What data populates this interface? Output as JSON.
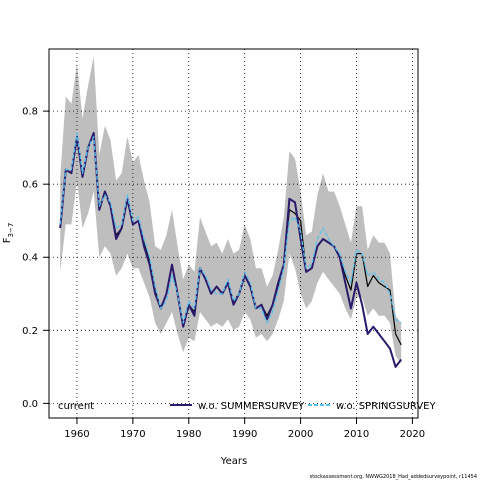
{
  "chart_data": {
    "type": "line",
    "title": "",
    "xlabel": "Years",
    "ylabel": "F",
    "ylabel_subscript": "3−7",
    "xlim": [
      1955,
      2021
    ],
    "ylim": [
      -0.04,
      0.97
    ],
    "xticks": [
      1960,
      1970,
      1980,
      1990,
      2000,
      2010,
      2020
    ],
    "yticks": [
      0.0,
      0.2,
      0.4,
      0.6,
      0.8
    ],
    "xtick_labels": [
      "1960",
      "1970",
      "1980",
      "1990",
      "2000",
      "2010",
      "2020"
    ],
    "ytick_labels": [
      "0.0",
      "0.2",
      "0.4",
      "0.6",
      "0.8"
    ],
    "grid": true,
    "grid_style": "dotted",
    "legend_position": "bottom",
    "band": {
      "x": [
        1957,
        1958,
        1959,
        1960,
        1961,
        1962,
        1963,
        1964,
        1965,
        1966,
        1967,
        1968,
        1969,
        1970,
        1971,
        1972,
        1973,
        1974,
        1975,
        1976,
        1977,
        1978,
        1979,
        1980,
        1981,
        1982,
        1983,
        1984,
        1985,
        1986,
        1987,
        1988,
        1989,
        1990,
        1991,
        1992,
        1993,
        1994,
        1995,
        1996,
        1997,
        1998,
        1999,
        2000,
        2001,
        2002,
        2003,
        2004,
        2005,
        2006,
        2007,
        2008,
        2009,
        2010,
        2011,
        2012,
        2013,
        2014,
        2015,
        2016,
        2017,
        2018
      ],
      "upper": [
        0.62,
        0.84,
        0.82,
        0.93,
        0.78,
        0.87,
        0.95,
        0.68,
        0.76,
        0.72,
        0.61,
        0.63,
        0.73,
        0.66,
        0.68,
        0.61,
        0.55,
        0.43,
        0.42,
        0.46,
        0.53,
        0.43,
        0.34,
        0.38,
        0.36,
        0.51,
        0.47,
        0.43,
        0.44,
        0.41,
        0.45,
        0.41,
        0.42,
        0.49,
        0.45,
        0.37,
        0.37,
        0.32,
        0.35,
        0.42,
        0.51,
        0.69,
        0.67,
        0.58,
        0.46,
        0.47,
        0.57,
        0.63,
        0.58,
        0.58,
        0.54,
        0.49,
        0.44,
        0.54,
        0.54,
        0.42,
        0.46,
        0.44,
        0.44,
        0.41,
        0.24,
        0.22
      ],
      "lower": [
        0.36,
        0.49,
        0.49,
        0.61,
        0.48,
        0.52,
        0.58,
        0.4,
        0.43,
        0.41,
        0.35,
        0.37,
        0.41,
        0.37,
        0.37,
        0.33,
        0.29,
        0.22,
        0.19,
        0.22,
        0.25,
        0.19,
        0.14,
        0.18,
        0.17,
        0.25,
        0.23,
        0.21,
        0.22,
        0.21,
        0.23,
        0.2,
        0.21,
        0.25,
        0.23,
        0.18,
        0.19,
        0.17,
        0.19,
        0.23,
        0.28,
        0.41,
        0.37,
        0.3,
        0.26,
        0.28,
        0.33,
        0.36,
        0.34,
        0.32,
        0.3,
        0.26,
        0.23,
        0.29,
        0.29,
        0.24,
        0.26,
        0.24,
        0.24,
        0.22,
        0.13,
        0.11
      ]
    },
    "series": [
      {
        "name": "current",
        "color": "#000000",
        "style": "solid",
        "x": [
          1957,
          1958,
          1959,
          1960,
          1961,
          1962,
          1963,
          1964,
          1965,
          1966,
          1967,
          1968,
          1969,
          1970,
          1971,
          1972,
          1973,
          1974,
          1975,
          1976,
          1977,
          1978,
          1979,
          1980,
          1981,
          1982,
          1983,
          1984,
          1985,
          1986,
          1987,
          1988,
          1989,
          1990,
          1991,
          1992,
          1993,
          1994,
          1995,
          1996,
          1997,
          1998,
          1999,
          2000,
          2001,
          2002,
          2003,
          2004,
          2005,
          2006,
          2007,
          2008,
          2009,
          2010,
          2011,
          2012,
          2013,
          2014,
          2015,
          2016,
          2017,
          2018
        ],
        "y": [
          0.48,
          0.64,
          0.63,
          0.73,
          0.62,
          0.7,
          0.74,
          0.53,
          0.58,
          0.54,
          0.46,
          0.48,
          0.56,
          0.49,
          0.5,
          0.44,
          0.39,
          0.31,
          0.26,
          0.3,
          0.38,
          0.3,
          0.21,
          0.27,
          0.25,
          0.37,
          0.34,
          0.3,
          0.32,
          0.3,
          0.33,
          0.28,
          0.3,
          0.35,
          0.32,
          0.26,
          0.27,
          0.24,
          0.27,
          0.32,
          0.38,
          0.53,
          0.52,
          0.5,
          0.36,
          0.37,
          0.43,
          0.45,
          0.44,
          0.43,
          0.4,
          0.35,
          0.31,
          0.41,
          0.41,
          0.32,
          0.35,
          0.33,
          0.32,
          0.31,
          0.19,
          0.16
        ]
      },
      {
        "name": "w.o. SUMMERSURVEY",
        "color": "#2b1a6b",
        "style": "solid",
        "x": [
          1957,
          1958,
          1959,
          1960,
          1961,
          1962,
          1963,
          1964,
          1965,
          1966,
          1967,
          1968,
          1969,
          1970,
          1971,
          1972,
          1973,
          1974,
          1975,
          1976,
          1977,
          1978,
          1979,
          1980,
          1981,
          1982,
          1983,
          1984,
          1985,
          1986,
          1987,
          1988,
          1989,
          1990,
          1991,
          1992,
          1993,
          1994,
          1995,
          1996,
          1997,
          1998,
          1999,
          2000,
          2001,
          2002,
          2003,
          2004,
          2005,
          2006,
          2007,
          2008,
          2009,
          2010,
          2011,
          2012,
          2013,
          2014,
          2015,
          2016,
          2017,
          2018
        ],
        "y": [
          0.48,
          0.64,
          0.63,
          0.73,
          0.62,
          0.7,
          0.74,
          0.53,
          0.58,
          0.54,
          0.45,
          0.48,
          0.56,
          0.49,
          0.5,
          0.43,
          0.38,
          0.3,
          0.26,
          0.3,
          0.38,
          0.3,
          0.21,
          0.27,
          0.24,
          0.37,
          0.34,
          0.3,
          0.32,
          0.3,
          0.33,
          0.27,
          0.3,
          0.35,
          0.32,
          0.26,
          0.27,
          0.23,
          0.27,
          0.33,
          0.38,
          0.56,
          0.55,
          0.45,
          0.36,
          0.37,
          0.43,
          0.45,
          0.44,
          0.43,
          0.4,
          0.33,
          0.26,
          0.33,
          0.27,
          0.19,
          0.21,
          0.19,
          0.17,
          0.15,
          0.1,
          0.12
        ]
      },
      {
        "name": "w.o. SPRINGSURVEY",
        "color": "#55c1ee",
        "style": "dashed",
        "x": [
          1957,
          1958,
          1959,
          1960,
          1961,
          1962,
          1963,
          1964,
          1965,
          1966,
          1967,
          1968,
          1969,
          1970,
          1971,
          1972,
          1973,
          1974,
          1975,
          1976,
          1977,
          1978,
          1979,
          1980,
          1981,
          1982,
          1983,
          1984,
          1985,
          1986,
          1987,
          1988,
          1989,
          1990,
          1991,
          1992,
          1993,
          1994,
          1995,
          1996,
          1997,
          1998,
          1999,
          2000,
          2001,
          2002,
          2003,
          2004,
          2005,
          2006,
          2007,
          2008,
          2009,
          2010,
          2011,
          2012,
          2013,
          2014,
          2015,
          2016,
          2017,
          2018
        ],
        "y": [
          0.49,
          0.64,
          0.64,
          0.74,
          0.63,
          0.7,
          0.73,
          0.54,
          0.57,
          0.55,
          0.48,
          0.49,
          0.57,
          0.5,
          0.51,
          0.45,
          0.4,
          0.32,
          0.26,
          0.28,
          0.35,
          0.3,
          0.22,
          0.28,
          0.26,
          0.37,
          0.35,
          0.31,
          0.3,
          0.3,
          0.34,
          0.28,
          0.3,
          0.36,
          0.33,
          0.26,
          0.26,
          0.22,
          0.25,
          0.31,
          0.37,
          0.5,
          0.51,
          0.47,
          0.37,
          0.38,
          0.45,
          0.48,
          0.45,
          0.43,
          0.41,
          0.36,
          0.33,
          0.42,
          0.41,
          0.35,
          0.36,
          0.34,
          0.33,
          0.3,
          0.23,
          0.22
        ]
      }
    ]
  },
  "footer": {
    "caption": "stockassessment.org, NWWG2018_Had_addedsurveypoint, r11454"
  }
}
